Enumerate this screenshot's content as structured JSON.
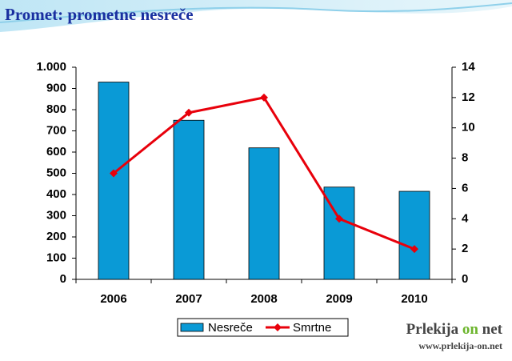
{
  "title": "Promet: prometne nesreče",
  "chart_data": {
    "type": "bar_line",
    "categories": [
      "2006",
      "2007",
      "2008",
      "2009",
      "2010"
    ],
    "series": [
      {
        "name": "Nesreče",
        "type": "bar",
        "color": "#0a9ad6",
        "values": [
          930,
          750,
          620,
          435,
          415
        ]
      },
      {
        "name": "Smrtne",
        "type": "line",
        "color": "#e8000b",
        "axis": "y2",
        "values": [
          7,
          11,
          12,
          4,
          2
        ]
      }
    ],
    "ylim": [
      0,
      1000
    ],
    "yticks": [
      0,
      100,
      200,
      300,
      400,
      500,
      600,
      700,
      800,
      900,
      {
        "value": 1000,
        "label": "1.000"
      }
    ],
    "y2lim": [
      0,
      14
    ],
    "y2ticks": [
      0,
      2,
      4,
      6,
      8,
      10,
      12,
      14
    ],
    "grid": false,
    "legend": "bottom"
  },
  "watermark": {
    "brand": [
      "Prlekija",
      "on",
      "net"
    ],
    "url": "www.prlekija-on.net"
  }
}
